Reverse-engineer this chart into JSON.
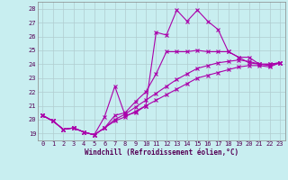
{
  "title": "",
  "xlabel": "Windchill (Refroidissement éolien,°C)",
  "ylabel": "",
  "xlim": [
    -0.5,
    23.5
  ],
  "ylim": [
    18.5,
    28.5
  ],
  "xticks": [
    0,
    1,
    2,
    3,
    4,
    5,
    6,
    7,
    8,
    9,
    10,
    11,
    12,
    13,
    14,
    15,
    16,
    17,
    18,
    19,
    20,
    21,
    22,
    23
  ],
  "yticks": [
    19,
    20,
    21,
    22,
    23,
    24,
    25,
    26,
    27,
    28
  ],
  "background_color": "#c8eef0",
  "grid_color": "#b0ccd0",
  "line_color": "#aa00aa",
  "lines": [
    [
      20.3,
      19.9,
      19.3,
      19.4,
      19.1,
      18.9,
      20.2,
      22.4,
      20.3,
      20.5,
      21.0,
      26.3,
      26.1,
      27.9,
      27.1,
      27.9,
      27.1,
      26.5,
      24.9,
      24.5,
      24.1,
      24.0,
      24.0,
      24.1
    ],
    [
      20.3,
      19.9,
      19.3,
      19.4,
      19.1,
      18.9,
      19.4,
      20.3,
      20.5,
      21.3,
      22.0,
      23.3,
      24.9,
      24.9,
      24.9,
      25.0,
      24.9,
      24.9,
      24.9,
      24.5,
      24.5,
      24.0,
      24.0,
      24.1
    ],
    [
      20.3,
      19.9,
      19.3,
      19.4,
      19.1,
      18.9,
      19.4,
      20.0,
      20.4,
      20.9,
      21.4,
      21.9,
      22.4,
      22.9,
      23.3,
      23.7,
      23.9,
      24.1,
      24.2,
      24.3,
      24.2,
      24.0,
      23.9,
      24.1
    ],
    [
      20.3,
      19.9,
      19.3,
      19.4,
      19.1,
      18.9,
      19.4,
      19.9,
      20.2,
      20.6,
      21.0,
      21.4,
      21.8,
      22.2,
      22.6,
      23.0,
      23.2,
      23.4,
      23.6,
      23.8,
      23.9,
      23.9,
      23.8,
      24.1
    ]
  ],
  "marker": "x",
  "markersize": 3,
  "linewidth": 0.8,
  "label_fontsize": 5.5,
  "tick_fontsize": 5.0,
  "xlabel_color": "#550055",
  "tick_color": "#550055"
}
